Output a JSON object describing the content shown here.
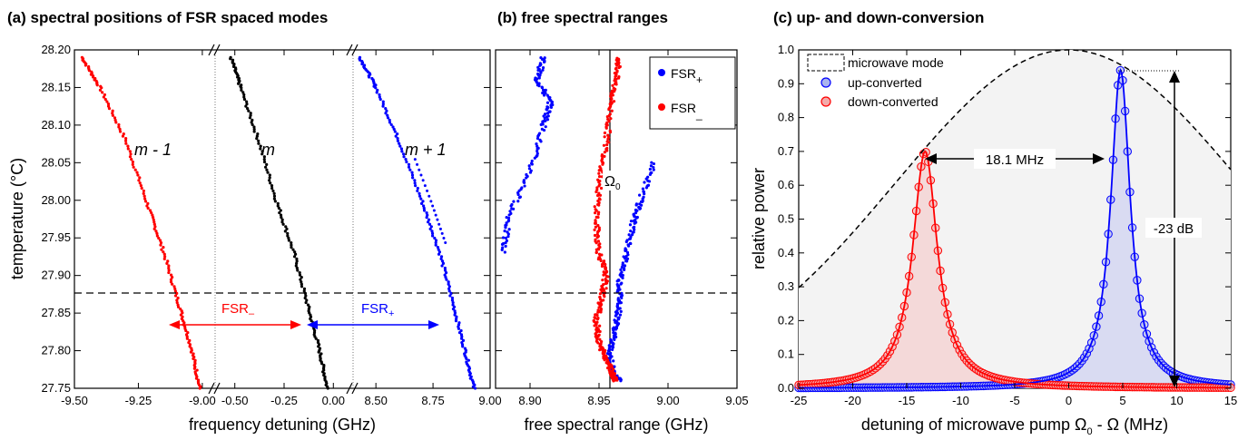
{
  "panels": {
    "a": {
      "title": "(a) spectral positions of FSR spaced modes",
      "xlabel": "frequency detuning (GHz)",
      "ylabel": "temperature (°C)",
      "yticks": [
        "28.20",
        "28.15",
        "28.10",
        "28.05",
        "28.00",
        "27.95",
        "27.90",
        "27.85",
        "27.80",
        "27.75"
      ],
      "xticks_left": [
        "-9.50",
        "-9.25",
        "-9.00"
      ],
      "xticks_mid": [
        "-0.50",
        "-0.25",
        "0.00"
      ],
      "xticks_right": [
        "8.50",
        "8.75",
        "9.00"
      ],
      "labels": {
        "m_minus": "m - 1",
        "m": "m",
        "m_plus": "m + 1",
        "fsr_minus": "FSR",
        "fsr_plus": "FSR"
      },
      "colors": {
        "m_minus": "#ff0000",
        "m": "#000000",
        "m_plus": "#0000ff"
      }
    },
    "b": {
      "title": "(b) free spectral ranges",
      "xlabel": "free spectral range (GHz)",
      "xticks": [
        "8.90",
        "8.95",
        "9.00",
        "9.05"
      ],
      "legend": [
        "FSR",
        "FSR"
      ],
      "omega_label": "Ω"
    },
    "c": {
      "title": "(c) up- and down-conversion",
      "xlabel": "detuning of microwave pump Ω - Ω (MHz)",
      "xlabel_parts": [
        "detuning of microwave pump Ω",
        " - Ω (MHz)"
      ],
      "ylabel": "relative power",
      "xticks": [
        "-25",
        "-20",
        "-15",
        "-10",
        "-5",
        "0",
        "5",
        "10",
        "15"
      ],
      "yticks": [
        "0.0",
        "0.1",
        "0.2",
        "0.3",
        "0.4",
        "0.5",
        "0.6",
        "0.7",
        "0.8",
        "0.9",
        "1.0"
      ],
      "legend": [
        "microwave mode",
        "up-converted",
        "down-converted"
      ],
      "ann_width": "18.1 MHz",
      "ann_db": "-23 dB"
    }
  },
  "chart_data": [
    {
      "type": "scatter",
      "title": "(a) spectral positions of FSR spaced modes",
      "xlabel": "frequency detuning (GHz)",
      "ylabel": "temperature (°C)",
      "ylim": [
        27.75,
        28.2
      ],
      "dashed_line_y": 27.88,
      "series": [
        {
          "name": "m - 1",
          "x": [
            -9.47,
            -9.4,
            -9.3,
            -9.22,
            -9.15,
            -9.09,
            -9.04,
            -9.01
          ],
          "y": [
            28.19,
            28.15,
            28.08,
            28.0,
            27.93,
            27.86,
            27.8,
            27.75
          ]
        },
        {
          "name": "m",
          "x": [
            -0.52,
            -0.47,
            -0.38,
            -0.29,
            -0.2,
            -0.13,
            -0.07,
            -0.03
          ],
          "y": [
            28.19,
            28.15,
            28.08,
            28.0,
            27.93,
            27.86,
            27.8,
            27.75
          ]
        },
        {
          "name": "m + 1",
          "x": [
            8.43,
            8.5,
            8.6,
            8.7,
            8.78,
            8.84,
            8.89,
            8.93
          ],
          "y": [
            28.19,
            28.15,
            28.08,
            28.0,
            27.93,
            27.86,
            27.8,
            27.75
          ]
        }
      ]
    },
    {
      "type": "scatter",
      "title": "(b) free spectral ranges",
      "xlabel": "free spectral range (GHz)",
      "xlim": [
        8.875,
        9.05
      ],
      "ylim": [
        27.75,
        28.2
      ],
      "omega_x": 8.96,
      "series": [
        {
          "name": "FSR+",
          "x": [
            8.91,
            8.905,
            8.915,
            8.91,
            8.9,
            8.885,
            8.88,
            8.99,
            8.98,
            8.975,
            8.97,
            8.965,
            8.965,
            8.962,
            8.958,
            8.96,
            8.965
          ],
          "y": [
            28.19,
            28.16,
            28.13,
            28.1,
            28.04,
            27.98,
            27.93,
            28.05,
            28.0,
            27.97,
            27.93,
            27.89,
            27.86,
            27.83,
            27.8,
            27.77,
            27.76
          ]
        },
        {
          "name": "FSR-",
          "x": [
            8.965,
            8.962,
            8.958,
            8.955,
            8.95,
            8.948,
            8.95,
            8.955,
            8.952,
            8.948,
            8.95,
            8.955,
            8.96,
            8.962
          ],
          "y": [
            28.19,
            28.16,
            28.12,
            28.07,
            28.02,
            27.97,
            27.93,
            27.9,
            27.87,
            27.84,
            27.81,
            27.79,
            27.77,
            27.76
          ]
        }
      ]
    },
    {
      "type": "line",
      "title": "(c) up- and down-conversion",
      "xlabel": "detuning of microwave pump Ω - Ω (MHz)",
      "ylabel": "relative power",
      "xlim": [
        -25,
        15
      ],
      "ylim": [
        0,
        1
      ],
      "series": [
        {
          "name": "microwave mode",
          "style": "dashed",
          "x": [
            -25,
            -20,
            -15,
            -10,
            -5,
            0,
            5,
            10,
            15
          ],
          "y": [
            0.4,
            0.62,
            0.8,
            0.92,
            0.98,
            1.0,
            0.96,
            0.84,
            0.66
          ]
        },
        {
          "name": "up-converted",
          "peak_x": 4.8,
          "peak_y": 0.94,
          "fwhm": 2.2
        },
        {
          "name": "down-converted",
          "peak_x": -13.3,
          "peak_y": 0.7,
          "fwhm": 2.8
        }
      ],
      "annotations": [
        "18.1 MHz",
        "-23 dB"
      ]
    }
  ]
}
